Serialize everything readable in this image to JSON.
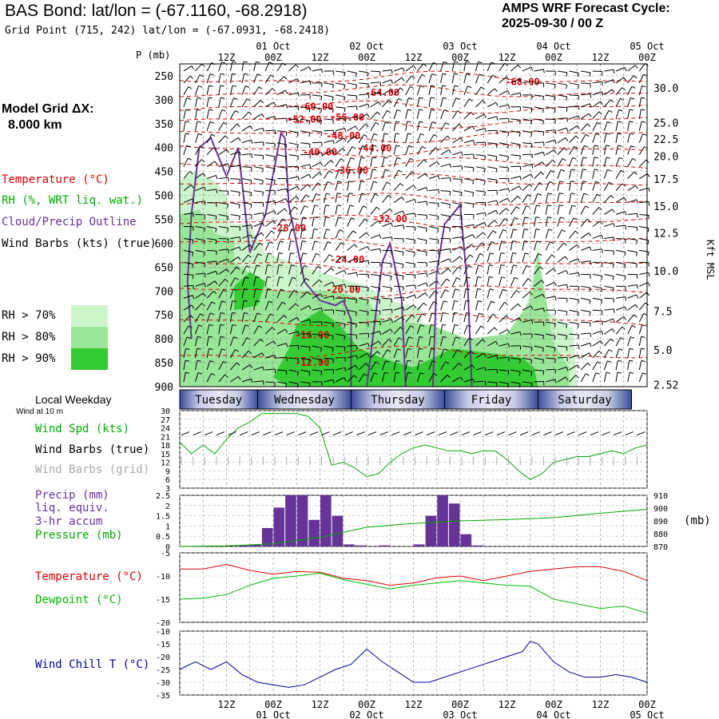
{
  "header": {
    "title": "BAS Bond:  lat/lon = (-67.1160, -68.2918)",
    "subtitle": "Grid Point (715, 242) lat/lon = (-67.0931, -68.2418)",
    "cycle_label": "AMPS WRF Forecast Cycle:",
    "cycle_value": "2025-09-30 / 00  Z"
  },
  "model": {
    "grid_label": "Model Grid ΔX:",
    "grid_value": "8.000 km"
  },
  "legend": {
    "temperature": "Temperature (°C)",
    "rh": "RH (%, WRT liq. wat.)",
    "cloud": "Cloud/Precip Outline",
    "wind": "Wind Barbs (kts) (true)",
    "rh70": "RH > 70%",
    "rh80": "RH > 80%",
    "rh90": "RH > 90%",
    "local_weekday": "Local Weekday",
    "wind_10m": "Wind at 10 m",
    "wind_spd": "Wind Spd (kts)",
    "wind_barbs_true": "Wind Barbs (true)",
    "wind_barbs_grid": "Wind Barbs (grid)",
    "precip1": "Precip (mm)",
    "precip2": "liq. equiv.",
    "precip3": "3-hr accum",
    "pressure": "Pressure (mb)",
    "pressure_unit": "(mb)",
    "temp2": "Temperature (°C)",
    "dewpoint": "Dewpoint (°C)",
    "windchill": "Wind Chill T (°C)"
  },
  "colors": {
    "temperature": "#dd0000",
    "rh": "#00aa00",
    "cloud": "#663399",
    "precip": "#663399",
    "pressure": "#00aa00",
    "dewpoint": "#00bb00",
    "windchill": "#000099",
    "rh70": "#ccf5cc",
    "rh80": "#99e699",
    "rh90": "#33cc33",
    "day_band": "#3a4d9a",
    "grid_barb": "#aaaaaa"
  },
  "chart_data": {
    "type": "meteogram",
    "time_axis": {
      "hours": [
        0,
        12,
        24,
        36,
        48,
        60,
        72,
        84,
        96,
        108,
        120
      ],
      "top_day_labels": [
        "01 Oct",
        "02 Oct",
        "03 Oct",
        "04 Oct",
        "05 Oct"
      ],
      "tick_labels": [
        "12Z",
        "00Z",
        "12Z",
        "00Z",
        "12Z",
        "00Z",
        "12Z",
        "00Z",
        "12Z",
        "00Z"
      ],
      "p_label": "P (mb)",
      "weekdays": [
        "Tuesday",
        "Wednesday",
        "Thursday",
        "Friday",
        "Saturday"
      ]
    },
    "cross_section": {
      "pressure_levels": [
        250,
        300,
        350,
        400,
        450,
        500,
        550,
        600,
        650,
        700,
        750,
        800,
        850,
        900
      ],
      "height_kft": [
        "30.0",
        "25.0",
        "22.5",
        "20.0",
        "17.5",
        "15.0",
        "12.5",
        "10.0",
        "7.5",
        "5.0",
        "2.52"
      ],
      "height_kft_pressure": [
        275,
        348,
        382,
        418,
        466,
        522,
        578,
        658,
        742,
        823,
        896
      ],
      "height_axis_label": "Kft MSL",
      "temperature_labels": [
        "-68.00",
        "-64.00",
        "-60.00",
        "-56.00",
        "-52.00",
        "-48.00",
        "-44.00",
        "-40.00",
        "-36.00",
        "-32.00",
        "-28.00",
        "-24.00",
        "-20.00",
        "-16.00",
        "-12.00"
      ],
      "temperature_label_points": [
        [
          88,
          263
        ],
        [
          52,
          285
        ],
        [
          35,
          314
        ],
        [
          43,
          337
        ],
        [
          32,
          341
        ],
        [
          42,
          375
        ],
        [
          50,
          401
        ],
        [
          36,
          410
        ],
        [
          44,
          448
        ],
        [
          54,
          549
        ],
        [
          28,
          568
        ],
        [
          43,
          634
        ],
        [
          42,
          697
        ],
        [
          34,
          792
        ],
        [
          34,
          850
        ]
      ]
    },
    "wind_speed": {
      "ylim": [
        3,
        30
      ],
      "yticks": [
        3,
        6,
        9,
        12,
        15,
        18,
        21,
        24,
        27,
        30
      ],
      "hours": [
        0,
        3,
        6,
        9,
        12,
        15,
        18,
        21,
        24,
        27,
        30,
        33,
        36,
        39,
        42,
        45,
        48,
        51,
        54,
        57,
        60,
        63,
        66,
        69,
        72,
        75,
        78,
        81,
        84,
        87,
        90,
        93,
        96,
        99,
        102,
        105,
        108,
        111,
        114,
        117,
        120
      ],
      "values": [
        19,
        15,
        18,
        15,
        20,
        24,
        26,
        29,
        29,
        29,
        29,
        28,
        24,
        11,
        12,
        10,
        7,
        8,
        12,
        15,
        17,
        18,
        17,
        16,
        16,
        15,
        16,
        16,
        13,
        9,
        6,
        8,
        12,
        13,
        14,
        14,
        15,
        16,
        15,
        17,
        18
      ]
    },
    "precip": {
      "ylim": [
        0,
        2.5
      ],
      "yticks": [
        0.0,
        0.5,
        1.0,
        1.5,
        2.0,
        2.5
      ],
      "hours": [
        0,
        3,
        6,
        9,
        12,
        15,
        18,
        21,
        24,
        27,
        30,
        33,
        36,
        39,
        42,
        45,
        48,
        51,
        54,
        57,
        60,
        63,
        66,
        69,
        72,
        75,
        78,
        81,
        84,
        87,
        90,
        93,
        96,
        99,
        102,
        105,
        108,
        111,
        114,
        117
      ],
      "values": [
        0,
        0,
        0,
        0,
        0,
        0.05,
        0.1,
        0.9,
        1.9,
        2.5,
        2.5,
        1.3,
        2.5,
        1.5,
        0.1,
        0.05,
        0,
        0.05,
        0,
        0,
        0.1,
        1.5,
        2.5,
        2.1,
        0.6,
        0.05,
        0,
        0,
        0,
        0,
        0,
        0,
        0,
        0,
        0,
        0,
        0,
        0,
        0,
        0
      ]
    },
    "pressure": {
      "ylim": [
        870,
        910
      ],
      "yticks": [
        870,
        880,
        890,
        900,
        910
      ],
      "hours": [
        0,
        12,
        24,
        36,
        48,
        60,
        72,
        84,
        96,
        108,
        120
      ],
      "values": [
        870,
        870.5,
        872,
        877,
        885,
        888,
        890,
        891,
        892.5,
        896,
        899
      ]
    },
    "temperature": {
      "ylim": [
        -20,
        -5
      ],
      "yticks": [
        -20,
        -15,
        -10,
        -5
      ],
      "hours": [
        0,
        6,
        12,
        18,
        24,
        30,
        36,
        42,
        48,
        54,
        60,
        66,
        72,
        78,
        84,
        90,
        96,
        102,
        108,
        114,
        120
      ],
      "values": [
        -8.5,
        -8.5,
        -7.5,
        -8.8,
        -9.6,
        -9.0,
        -9.2,
        -10.5,
        -11.0,
        -12.0,
        -11.5,
        -10.4,
        -10.0,
        -11.0,
        -10.0,
        -9.0,
        -8.5,
        -8.0,
        -8.0,
        -9.0,
        -11.0
      ],
      "dewpoint": [
        -15.0,
        -14.8,
        -14.0,
        -12.0,
        -10.5,
        -10.0,
        -9.4,
        -10.8,
        -11.8,
        -12.8,
        -12.0,
        -11.5,
        -11.0,
        -11.5,
        -12.0,
        -12.2,
        -15.0,
        -16.0,
        -17.0,
        -16.5,
        -18.0
      ]
    },
    "wind_chill": {
      "ylim": [
        -35,
        -10
      ],
      "yticks": [
        -35,
        -30,
        -25,
        -20,
        -15,
        -10
      ],
      "hours": [
        0,
        4,
        8,
        12,
        16,
        20,
        24,
        28,
        32,
        36,
        40,
        44,
        48,
        52,
        56,
        60,
        64,
        68,
        72,
        76,
        80,
        84,
        88,
        90,
        92,
        96,
        100,
        104,
        108,
        112,
        116,
        120
      ],
      "values": [
        -25,
        -22,
        -25,
        -22,
        -27,
        -30,
        -31,
        -32,
        -31,
        -28,
        -25,
        -23,
        -17,
        -22,
        -26,
        -30,
        -30,
        -28,
        -26,
        -24,
        -22,
        -20,
        -18,
        -14,
        -15,
        -22,
        -26,
        -28,
        -28,
        -27,
        -28,
        -30
      ]
    }
  }
}
